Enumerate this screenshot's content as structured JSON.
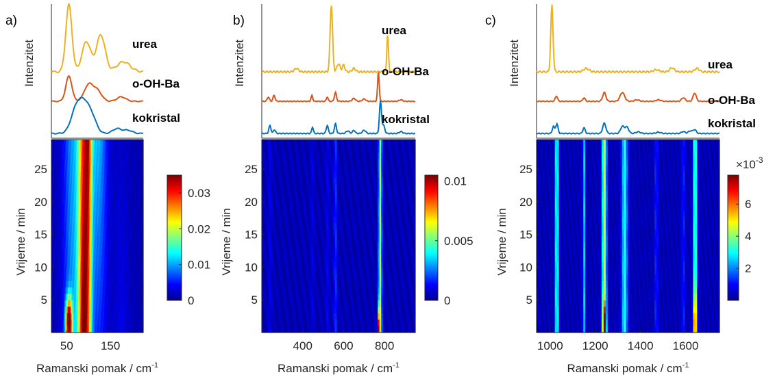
{
  "chart_data": [
    {
      "type": "heatmap",
      "panel_label": "a)",
      "xlabel": "Ramanski pomak / cm",
      "xlabel_sup": "-1",
      "ylabel": "Vrijeme / min",
      "spectrum_ylabel": "Intenzitet",
      "xlim": [
        15,
        225
      ],
      "ylim": [
        0,
        29.5
      ],
      "xticks": [
        50,
        150
      ],
      "yticks": [
        5,
        10,
        15,
        20,
        25
      ],
      "spectra_legend": [
        "urea",
        "o-OH-Ba",
        "kokristal"
      ],
      "spectra_colors": [
        "#EDB120",
        "#D95319",
        "#0072BD"
      ],
      "spectra_peaks": [
        [
          [
            55,
            1.0,
            7
          ],
          [
            95,
            0.45,
            10
          ],
          [
            128,
            0.55,
            10
          ],
          [
            180,
            0.15,
            15
          ]
        ],
        [
          [
            55,
            0.85,
            7
          ],
          [
            100,
            0.55,
            10
          ],
          [
            120,
            0.35,
            10
          ],
          [
            175,
            0.15,
            10
          ]
        ],
        [
          [
            72,
            0.75,
            12
          ],
          [
            92,
            0.8,
            12
          ],
          [
            110,
            0.35,
            10
          ],
          [
            165,
            0.15,
            10
          ],
          [
            190,
            0.1,
            10
          ]
        ]
      ],
      "colorbar": {
        "ticks": [
          0,
          0.01,
          0.02,
          0.03
        ],
        "tick_labels": [
          "0",
          "0.01",
          "0.02",
          "0.03"
        ],
        "min": 0,
        "max": 0.035,
        "exponent": ""
      },
      "heatmap_bands": [
        [
          58,
          10,
          0.06,
          0.05
        ],
        [
          75,
          20,
          0.2,
          0.22
        ],
        [
          88,
          8,
          0.78,
          0.55
        ],
        [
          100,
          6,
          0.35,
          0.55
        ],
        [
          122,
          14,
          0.1,
          0.25
        ],
        [
          175,
          12,
          0.05,
          0.02
        ]
      ],
      "heatmap_points": [
        [
          55,
          1.5,
          5,
          2.5,
          1.0
        ]
      ]
    },
    {
      "type": "heatmap",
      "panel_label": "b)",
      "xlabel": "Ramanski pomak / cm",
      "xlabel_sup": "-1",
      "ylabel": "Vrijeme / min",
      "spectrum_ylabel": "Intenzitet",
      "xlim": [
        200,
        950
      ],
      "ylim": [
        0,
        29.5
      ],
      "xticks": [
        400,
        600,
        800
      ],
      "yticks": [
        5,
        10,
        15,
        20,
        25
      ],
      "spectra_legend": [
        "urea",
        "o-OH-Ba",
        "kokristal"
      ],
      "spectra_colors": [
        "#EDB120",
        "#D95319",
        "#0072BD"
      ],
      "spectra_peaks": [
        [
          [
            370,
            0.05,
            10
          ],
          [
            540,
            1.0,
            6
          ],
          [
            575,
            0.12,
            8
          ],
          [
            600,
            0.1,
            6
          ],
          [
            650,
            0.05,
            8
          ],
          [
            815,
            0.55,
            4
          ]
        ],
        [
          [
            232,
            0.15,
            5
          ],
          [
            260,
            0.2,
            5
          ],
          [
            445,
            0.2,
            4
          ],
          [
            520,
            0.15,
            4
          ],
          [
            560,
            0.3,
            5
          ],
          [
            650,
            0.1,
            8
          ],
          [
            700,
            0.08,
            8
          ],
          [
            770,
            1.0,
            4
          ],
          [
            880,
            0.05,
            8
          ]
        ],
        [
          [
            240,
            0.25,
            5
          ],
          [
            262,
            0.12,
            5
          ],
          [
            448,
            0.2,
            4
          ],
          [
            520,
            0.25,
            5
          ],
          [
            560,
            0.3,
            5
          ],
          [
            620,
            0.08,
            8
          ],
          [
            650,
            0.1,
            6
          ],
          [
            700,
            0.1,
            8
          ],
          [
            780,
            1.0,
            5
          ],
          [
            795,
            0.25,
            6
          ],
          [
            880,
            0.06,
            8
          ]
        ]
      ],
      "colorbar": {
        "ticks": [
          0,
          0.005,
          0.01
        ],
        "tick_labels": [
          "0",
          "0.005",
          "0.01"
        ],
        "min": 0,
        "max": 0.0105,
        "exponent": ""
      },
      "heatmap_bands": [
        [
          780,
          5,
          0.45,
          0.45
        ],
        [
          772,
          4,
          0.15,
          0.05
        ],
        [
          560,
          6,
          0.12,
          0.12
        ],
        [
          520,
          5,
          0.06,
          0.06
        ],
        [
          448,
          4,
          0.06,
          0.06
        ],
        [
          240,
          5,
          0.06,
          0.06
        ]
      ],
      "heatmap_points": [
        [
          772,
          0.5,
          4,
          2.0,
          0.75
        ]
      ]
    },
    {
      "type": "heatmap",
      "panel_label": "c)",
      "xlabel": "Ramanski pomak / cm",
      "xlabel_sup": "-1",
      "ylabel": "Vrijeme / min",
      "spectrum_ylabel": "Intenzitet",
      "xlim": [
        940,
        1750
      ],
      "ylim": [
        0,
        29.5
      ],
      "xticks": [
        1000,
        1200,
        1400,
        1600
      ],
      "yticks": [
        5,
        10,
        15,
        20,
        25
      ],
      "spectra_legend": [
        "urea",
        "o-OH-Ba",
        "kokristal"
      ],
      "spectra_colors": [
        "#EDB120",
        "#D95319",
        "#0072BD"
      ],
      "spectra_peaks": [
        [
          [
            1008,
            1.0,
            5
          ],
          [
            1160,
            0.05,
            12
          ],
          [
            1470,
            0.03,
            12
          ],
          [
            1540,
            0.06,
            10
          ],
          [
            1650,
            0.05,
            10
          ]
        ],
        [
          [
            1028,
            0.18,
            5
          ],
          [
            1150,
            0.12,
            5
          ],
          [
            1240,
            0.3,
            7
          ],
          [
            1320,
            0.3,
            10
          ],
          [
            1385,
            0.05,
            10
          ],
          [
            1480,
            0.05,
            10
          ],
          [
            1590,
            0.12,
            8
          ],
          [
            1640,
            0.28,
            7
          ]
        ],
        [
          [
            1015,
            0.22,
            5
          ],
          [
            1030,
            0.3,
            5
          ],
          [
            1150,
            0.18,
            5
          ],
          [
            1240,
            0.32,
            7
          ],
          [
            1320,
            0.22,
            8
          ],
          [
            1340,
            0.2,
            8
          ],
          [
            1390,
            0.05,
            10
          ],
          [
            1480,
            0.04,
            10
          ],
          [
            1590,
            0.06,
            8
          ],
          [
            1620,
            0.08,
            8
          ],
          [
            1640,
            0.12,
            7
          ]
        ]
      ],
      "colorbar": {
        "ticks": [
          2,
          4,
          6
        ],
        "tick_labels": [
          "2",
          "4",
          "6"
        ],
        "min": 0,
        "max": 7.8,
        "exponent": "×10-3"
      },
      "heatmap_bands": [
        [
          1030,
          5,
          0.45,
          0.45
        ],
        [
          1150,
          4,
          0.3,
          0.3
        ],
        [
          1240,
          7,
          0.55,
          0.55
        ],
        [
          1330,
          9,
          0.35,
          0.35
        ],
        [
          1470,
          5,
          0.12,
          0.12
        ],
        [
          1590,
          6,
          0.1,
          0.1
        ],
        [
          1642,
          6,
          0.45,
          0.45
        ]
      ],
      "heatmap_points": [
        [
          1240,
          1.0,
          6,
          2.5,
          0.45
        ],
        [
          1642,
          1.5,
          5,
          3.0,
          0.45
        ]
      ]
    }
  ]
}
